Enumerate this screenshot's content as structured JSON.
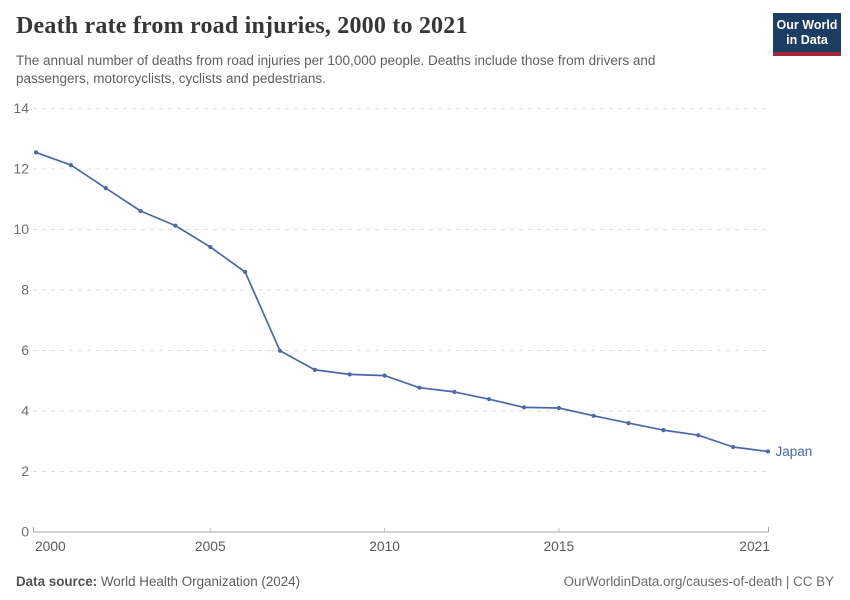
{
  "header": {
    "title": "Death rate from road injuries, 2000 to 2021",
    "subtitle": "The annual number of deaths from road injuries per 100,000 people. Deaths include those from drivers and passengers, motorcyclists, cyclists and pedestrians.",
    "logo": {
      "line1": "Our World",
      "line2": "in Data",
      "bg_color": "#1d3d63",
      "accent_color": "#a52639",
      "text_color": "#ffffff"
    }
  },
  "chart_data": {
    "type": "line",
    "title": "Death rate from road injuries, 2000 to 2021",
    "xlabel": "",
    "ylabel": "",
    "x": [
      2000,
      2001,
      2002,
      2003,
      2004,
      2005,
      2006,
      2007,
      2008,
      2009,
      2010,
      2011,
      2012,
      2013,
      2014,
      2015,
      2016,
      2017,
      2018,
      2019,
      2020,
      2021
    ],
    "series": [
      {
        "name": "Japan",
        "color": "#4a69a8",
        "values": [
          12.55,
          12.13,
          11.37,
          10.61,
          10.13,
          9.42,
          8.6,
          5.99,
          5.36,
          5.21,
          5.17,
          4.77,
          4.63,
          4.39,
          4.12,
          4.1,
          3.84,
          3.6,
          3.37,
          3.2,
          2.81,
          2.66
        ]
      }
    ],
    "xlim": [
      2000,
      2021
    ],
    "ylim": [
      0,
      14
    ],
    "x_ticks": [
      2000,
      2005,
      2010,
      2015,
      2021
    ],
    "y_ticks": [
      0,
      2,
      4,
      6,
      8,
      10,
      12,
      14
    ],
    "grid": "horizontal dashed",
    "legend_position": "end-of-line label",
    "colors": {
      "gridline": "#dedede",
      "axis_line": "#a8a8a8",
      "y_tick_label": "#6e6e6e",
      "x_tick_label": "#5a5a5a"
    }
  },
  "footer": {
    "datasource_label": "Data source:",
    "datasource_value": " World Health Organization (2024)",
    "attribution": "OurWorldinData.org/causes-of-death | CC BY"
  }
}
